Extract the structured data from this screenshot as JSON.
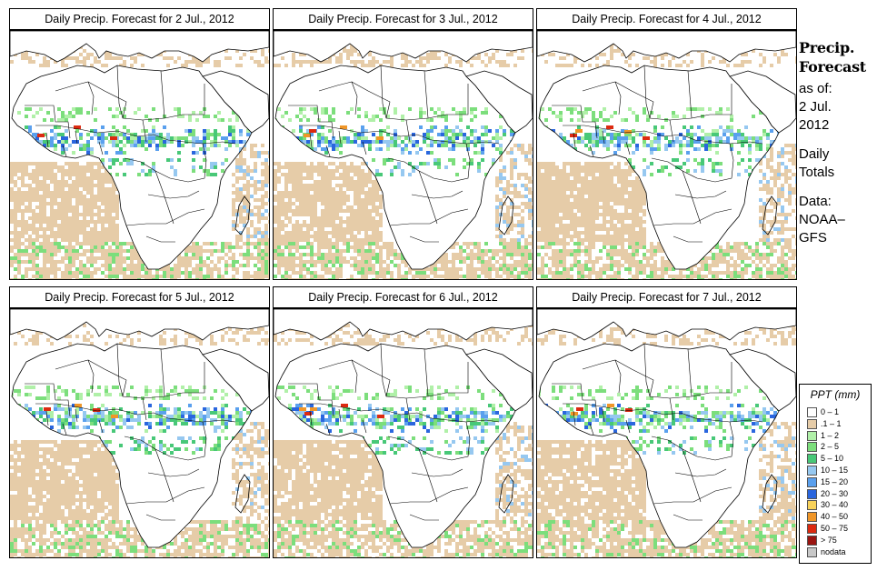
{
  "panels": [
    {
      "title": "Daily Precip. Forecast for  2 Jul., 2012"
    },
    {
      "title": "Daily Precip. Forecast for  3 Jul., 2012"
    },
    {
      "title": "Daily Precip. Forecast for  4 Jul., 2012"
    },
    {
      "title": "Daily Precip. Forecast for  5 Jul., 2012"
    },
    {
      "title": "Daily Precip. Forecast for  6 Jul., 2012"
    },
    {
      "title": "Daily Precip. Forecast for  7 Jul., 2012"
    }
  ],
  "sidebar": {
    "heading_line1": "Precip.",
    "heading_line2": "Forecast",
    "asof_line1": "as of:",
    "asof_line2": "2 Jul.",
    "asof_line3": "2012",
    "totals_line1": "Daily",
    "totals_line2": "Totals",
    "source_line1": "Data:",
    "source_line2": "NOAA–",
    "source_line3": "GFS"
  },
  "legend": {
    "title": "PPT (mm)",
    "items": [
      {
        "label": "0 – 1",
        "color": "#ffffff"
      },
      {
        "label": ".1 – 1",
        "color": "#e6cca8"
      },
      {
        "label": "1 – 2",
        "color": "#b0f0a8"
      },
      {
        "label": "2 – 5",
        "color": "#7cde7c"
      },
      {
        "label": "5 – 10",
        "color": "#48c878"
      },
      {
        "label": "10 – 15",
        "color": "#96c8f0"
      },
      {
        "label": "15 – 20",
        "color": "#5aa0ee"
      },
      {
        "label": "20 – 30",
        "color": "#2a66de"
      },
      {
        "label": "30 – 40",
        "color": "#f8d25a"
      },
      {
        "label": "40 – 50",
        "color": "#f09628"
      },
      {
        "label": "50 – 75",
        "color": "#dc2a10"
      },
      {
        "label": "> 75",
        "color": "#9a1410"
      },
      {
        "label": "nodata",
        "color": "#c8c8c8"
      }
    ]
  }
}
